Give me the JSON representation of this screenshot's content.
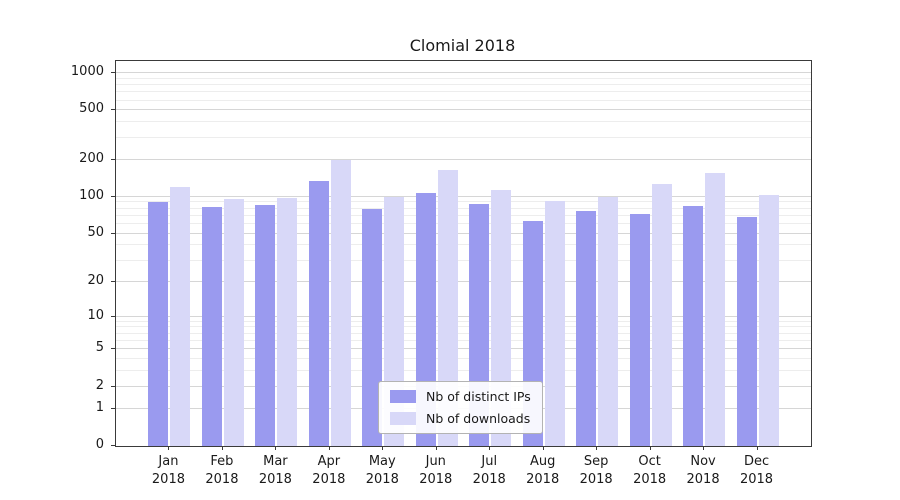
{
  "chart_data": {
    "type": "bar",
    "title": "Clomial 2018",
    "categories": [
      "Jan",
      "Feb",
      "Mar",
      "Apr",
      "May",
      "Jun",
      "Jul",
      "Aug",
      "Sep",
      "Oct",
      "Nov",
      "Dec"
    ],
    "year": "2018",
    "series": [
      {
        "name": "Nb of distinct IPs",
        "color": "#9a9aef",
        "values": [
          90,
          83,
          85,
          135,
          79,
          107,
          88,
          64,
          77,
          73,
          84,
          69
        ]
      },
      {
        "name": "Nb of downloads",
        "color": "#d8d8f8",
        "values": [
          120,
          96,
          98,
          200,
          100,
          165,
          113,
          93,
          100,
          127,
          155,
          104
        ]
      }
    ],
    "yscale": "log1p",
    "ylim": [
      0,
      1000
    ],
    "y_major_ticks": [
      0,
      1,
      2,
      5,
      10,
      20,
      50,
      100,
      200,
      500,
      1000
    ],
    "y_minor_ticks": [
      3,
      4,
      6,
      7,
      8,
      9,
      30,
      40,
      60,
      70,
      80,
      90,
      300,
      400,
      600,
      700,
      800,
      900
    ],
    "grid": true,
    "legend_position": "lower center"
  }
}
